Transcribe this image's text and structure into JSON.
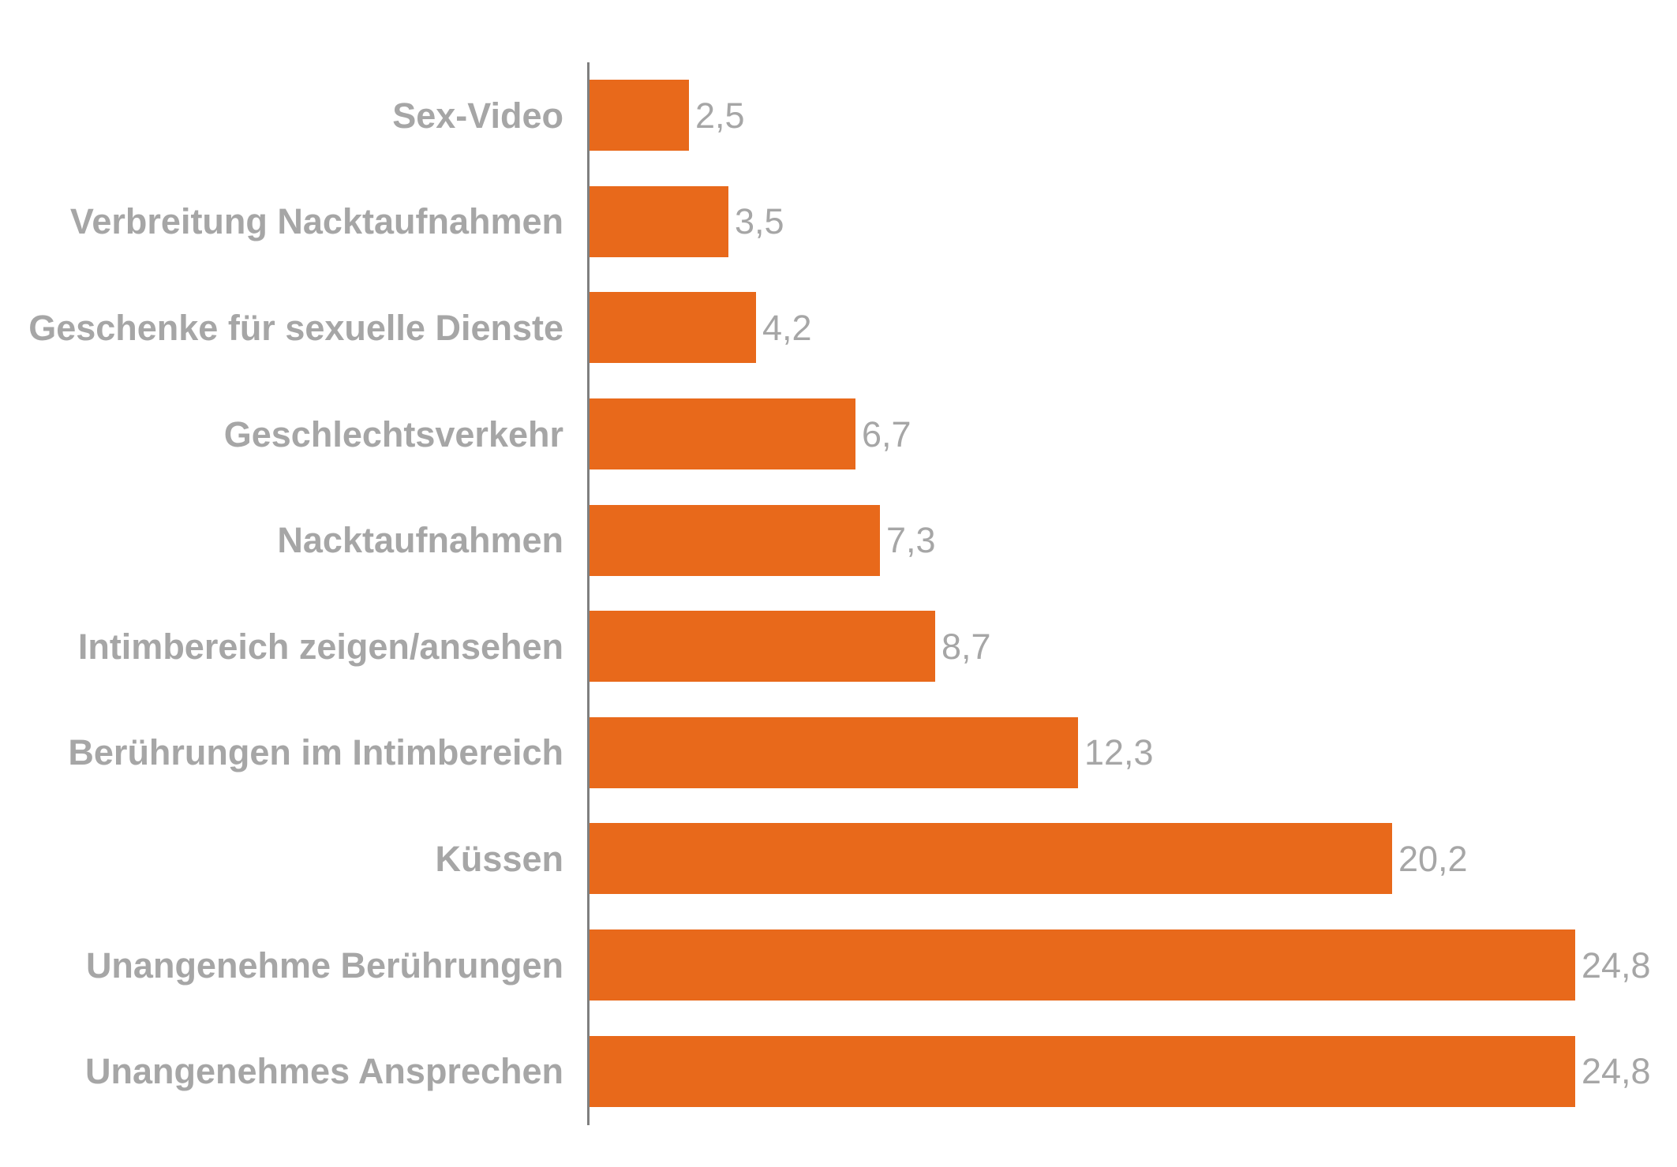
{
  "chart_data": {
    "type": "bar",
    "orientation": "horizontal",
    "title": "",
    "xlabel": "",
    "ylabel": "",
    "categories": [
      "Sex-Video",
      "Verbreitung Nacktaufnahmen",
      "Geschenke für sexuelle Dienste",
      "Geschlechtsverkehr",
      "Nacktaufnahmen",
      "Intimbereich zeigen/ansehen",
      "Berührungen im Intimbereich",
      "Küssen",
      "Unangenehme Berührungen",
      "Unangenehmes Ansprechen"
    ],
    "values": [
      2.5,
      3.5,
      4.2,
      6.7,
      7.3,
      8.7,
      12.3,
      20.2,
      24.8,
      24.8
    ],
    "value_labels": [
      "2,5",
      "3,5",
      "4,2",
      "6,7",
      "7,3",
      "8,7",
      "12,3",
      "20,2",
      "24,8",
      "24,8"
    ],
    "xlim": [
      0,
      27.4
    ],
    "grid": false,
    "legend": false,
    "data_labels_position": "outside-end",
    "bar_color": "#E8691B",
    "label_color": "#A6A6A6",
    "value_color": "#A6A6A6",
    "axis_color": "#7F7F7F"
  }
}
